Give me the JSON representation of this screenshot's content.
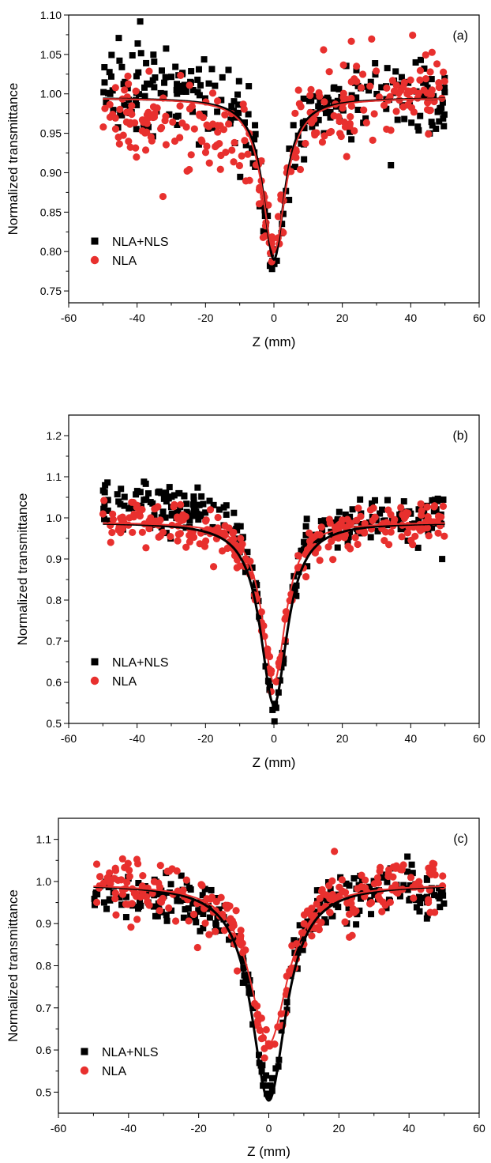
{
  "colors": {
    "nla_nls": "#000000",
    "nla": "#e8302e",
    "axis": "#000000"
  },
  "chart_data": [
    {
      "type": "scatter",
      "panel_label": "(a)",
      "xlabel": "Z (mm)",
      "ylabel": "Normalized transmittance",
      "xlim": [
        -60,
        60
      ],
      "ylim": [
        0.735,
        1.1
      ],
      "x_ticks": [
        -60,
        -40,
        -20,
        0,
        20,
        40,
        60
      ],
      "y_ticks": [
        0.75,
        0.8,
        0.85,
        0.9,
        0.95,
        1.0,
        1.05,
        1.1
      ],
      "y_tick_labels": [
        "0.75",
        "0.80",
        "0.85",
        "0.90",
        "0.95",
        "1.00",
        "1.05",
        "1.10"
      ],
      "legend_placement": "bottom-left",
      "series": [
        {
          "name": "NLA+NLS",
          "marker": "square",
          "color": "#000000",
          "x_range": [
            -50,
            50
          ],
          "n_points": 260,
          "dip_min": 0.775,
          "dip_width": 4.0,
          "baseline": 1.0,
          "noise": 0.025,
          "left_offset": 0.012,
          "fit": {
            "baseline": 0.995,
            "min": 0.79,
            "width": 3.8
          }
        },
        {
          "name": "NLA",
          "marker": "circle",
          "color": "#e8302e",
          "x_range": [
            -50,
            50
          ],
          "n_points": 260,
          "dip_min": 0.805,
          "dip_width": 4.2,
          "baseline": 0.995,
          "noise": 0.028,
          "left_offset": -0.03,
          "fit": {
            "baseline": 0.995,
            "min": 0.8,
            "width": 4.2
          }
        }
      ]
    },
    {
      "type": "scatter",
      "panel_label": "(b)",
      "xlabel": "Z (mm)",
      "ylabel": "Normalized transmittance",
      "xlim": [
        -60,
        60
      ],
      "ylim": [
        0.5,
        1.25
      ],
      "x_ticks": [
        -60,
        -40,
        -20,
        0,
        20,
        40,
        60
      ],
      "y_ticks": [
        0.5,
        0.6,
        0.7,
        0.8,
        0.9,
        1.0,
        1.1,
        1.2
      ],
      "y_tick_labels": [
        "0.5",
        "0.6",
        "0.7",
        "0.8",
        "0.9",
        "1.0",
        "1.1",
        "1.2"
      ],
      "legend_placement": "bottom-left",
      "series": [
        {
          "name": "NLA+NLS",
          "marker": "square",
          "color": "#000000",
          "x_range": [
            -50,
            50
          ],
          "n_points": 260,
          "dip_min": 0.55,
          "dip_width": 4.5,
          "baseline": 1.01,
          "noise": 0.03,
          "left_offset": 0.03,
          "fit": {
            "baseline": 0.99,
            "min": 0.545,
            "width": 4.8
          }
        },
        {
          "name": "NLA",
          "marker": "circle",
          "color": "#e8302e",
          "x_range": [
            -50,
            50
          ],
          "n_points": 260,
          "dip_min": 0.6,
          "dip_width": 4.5,
          "baseline": 0.99,
          "noise": 0.025,
          "left_offset": 0.0,
          "fit": {
            "baseline": 0.99,
            "min": 0.6,
            "width": 4.2
          }
        }
      ]
    },
    {
      "type": "scatter",
      "panel_label": "(c)",
      "xlabel": "Z (mm)",
      "ylabel": "Normalized transmittance",
      "xlim": [
        -60,
        60
      ],
      "ylim": [
        0.45,
        1.15
      ],
      "x_ticks": [
        -60,
        -40,
        -20,
        0,
        20,
        40,
        60
      ],
      "y_ticks": [
        0.5,
        0.6,
        0.7,
        0.8,
        0.9,
        1.0,
        1.1
      ],
      "y_tick_labels": [
        "0.5",
        "0.6",
        "0.7",
        "0.8",
        "0.9",
        "1.0",
        "1.1"
      ],
      "legend_placement": "bottom-left",
      "series": [
        {
          "name": "NLA+NLS",
          "marker": "square",
          "color": "#000000",
          "x_range": [
            -50,
            50
          ],
          "n_points": 260,
          "dip_min": 0.49,
          "dip_width": 5.5,
          "baseline": 0.99,
          "noise": 0.03,
          "left_offset": -0.01,
          "fit": {
            "baseline": 0.995,
            "min": 0.48,
            "width": 6.0
          }
        },
        {
          "name": "NLA",
          "marker": "circle",
          "color": "#e8302e",
          "x_range": [
            -50,
            50
          ],
          "n_points": 260,
          "dip_min": 0.6,
          "dip_width": 6.5,
          "baseline": 1.0,
          "noise": 0.035,
          "left_offset": 0.0,
          "fit": {
            "baseline": 0.995,
            "min": 0.615,
            "width": 6.5
          }
        }
      ]
    }
  ]
}
